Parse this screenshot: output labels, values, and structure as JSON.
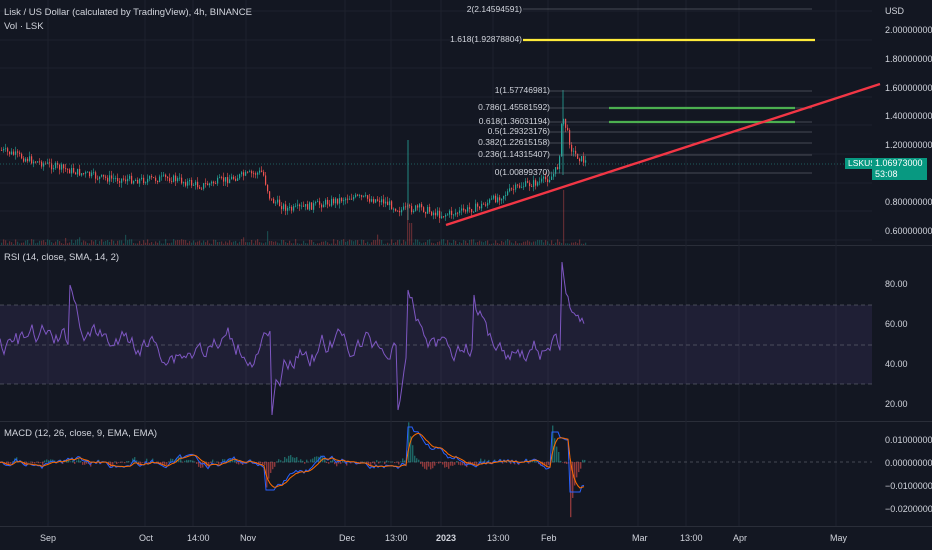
{
  "header": {
    "symbol_line": "Lisk / US Dollar (calculated by TradingView), 4h, BINANCE",
    "vol_line": "Vol · LSK"
  },
  "price_axis": {
    "currency": "USD",
    "ticks": [
      "2.00000000",
      "1.80000000",
      "1.60000000",
      "1.40000000",
      "1.20000000",
      "0.80000000",
      "0.60000000"
    ]
  },
  "price_tag": {
    "symbol": "LSKUSD",
    "value": "1.06973000",
    "countdown": "53:08"
  },
  "fib_levels": [
    {
      "label": "2(2.14594591)"
    },
    {
      "label": "1.618(1.92878804)"
    },
    {
      "label": "1(1.57746981)"
    },
    {
      "label": "0.786(1.45581592)"
    },
    {
      "label": "0.618(1.36031194)"
    },
    {
      "label": "0.5(1.29323176)"
    },
    {
      "label": "0.382(1.22615158)"
    },
    {
      "label": "0.236(1.14315407)"
    },
    {
      "label": "0(1.00899370)"
    }
  ],
  "rsi": {
    "legend": "RSI (14, close, SMA, 14, 2)",
    "ticks": [
      "80.00",
      "60.00",
      "40.00",
      "20.00"
    ]
  },
  "macd": {
    "legend": "MACD (12, 26, close, 9, EMA, EMA)",
    "ticks": [
      "0.01000000",
      "0.00000000",
      "−0.01000000",
      "−0.02000000"
    ]
  },
  "time_axis": [
    "Sep",
    "Oct",
    "14:00",
    "Nov",
    "Dec",
    "13:00",
    "2023",
    "13:00",
    "Feb",
    "Mar",
    "13:00",
    "Apr",
    "May"
  ],
  "colors": {
    "bg": "#131722",
    "up": "#26a69a",
    "down": "#ef5350",
    "rsi": "#7e57c2",
    "trend": "#f23645",
    "fib_yellow": "#ffeb3b",
    "fib_green": "#4caf50",
    "macd": "#2962ff",
    "signal": "#ff6d00"
  }
}
